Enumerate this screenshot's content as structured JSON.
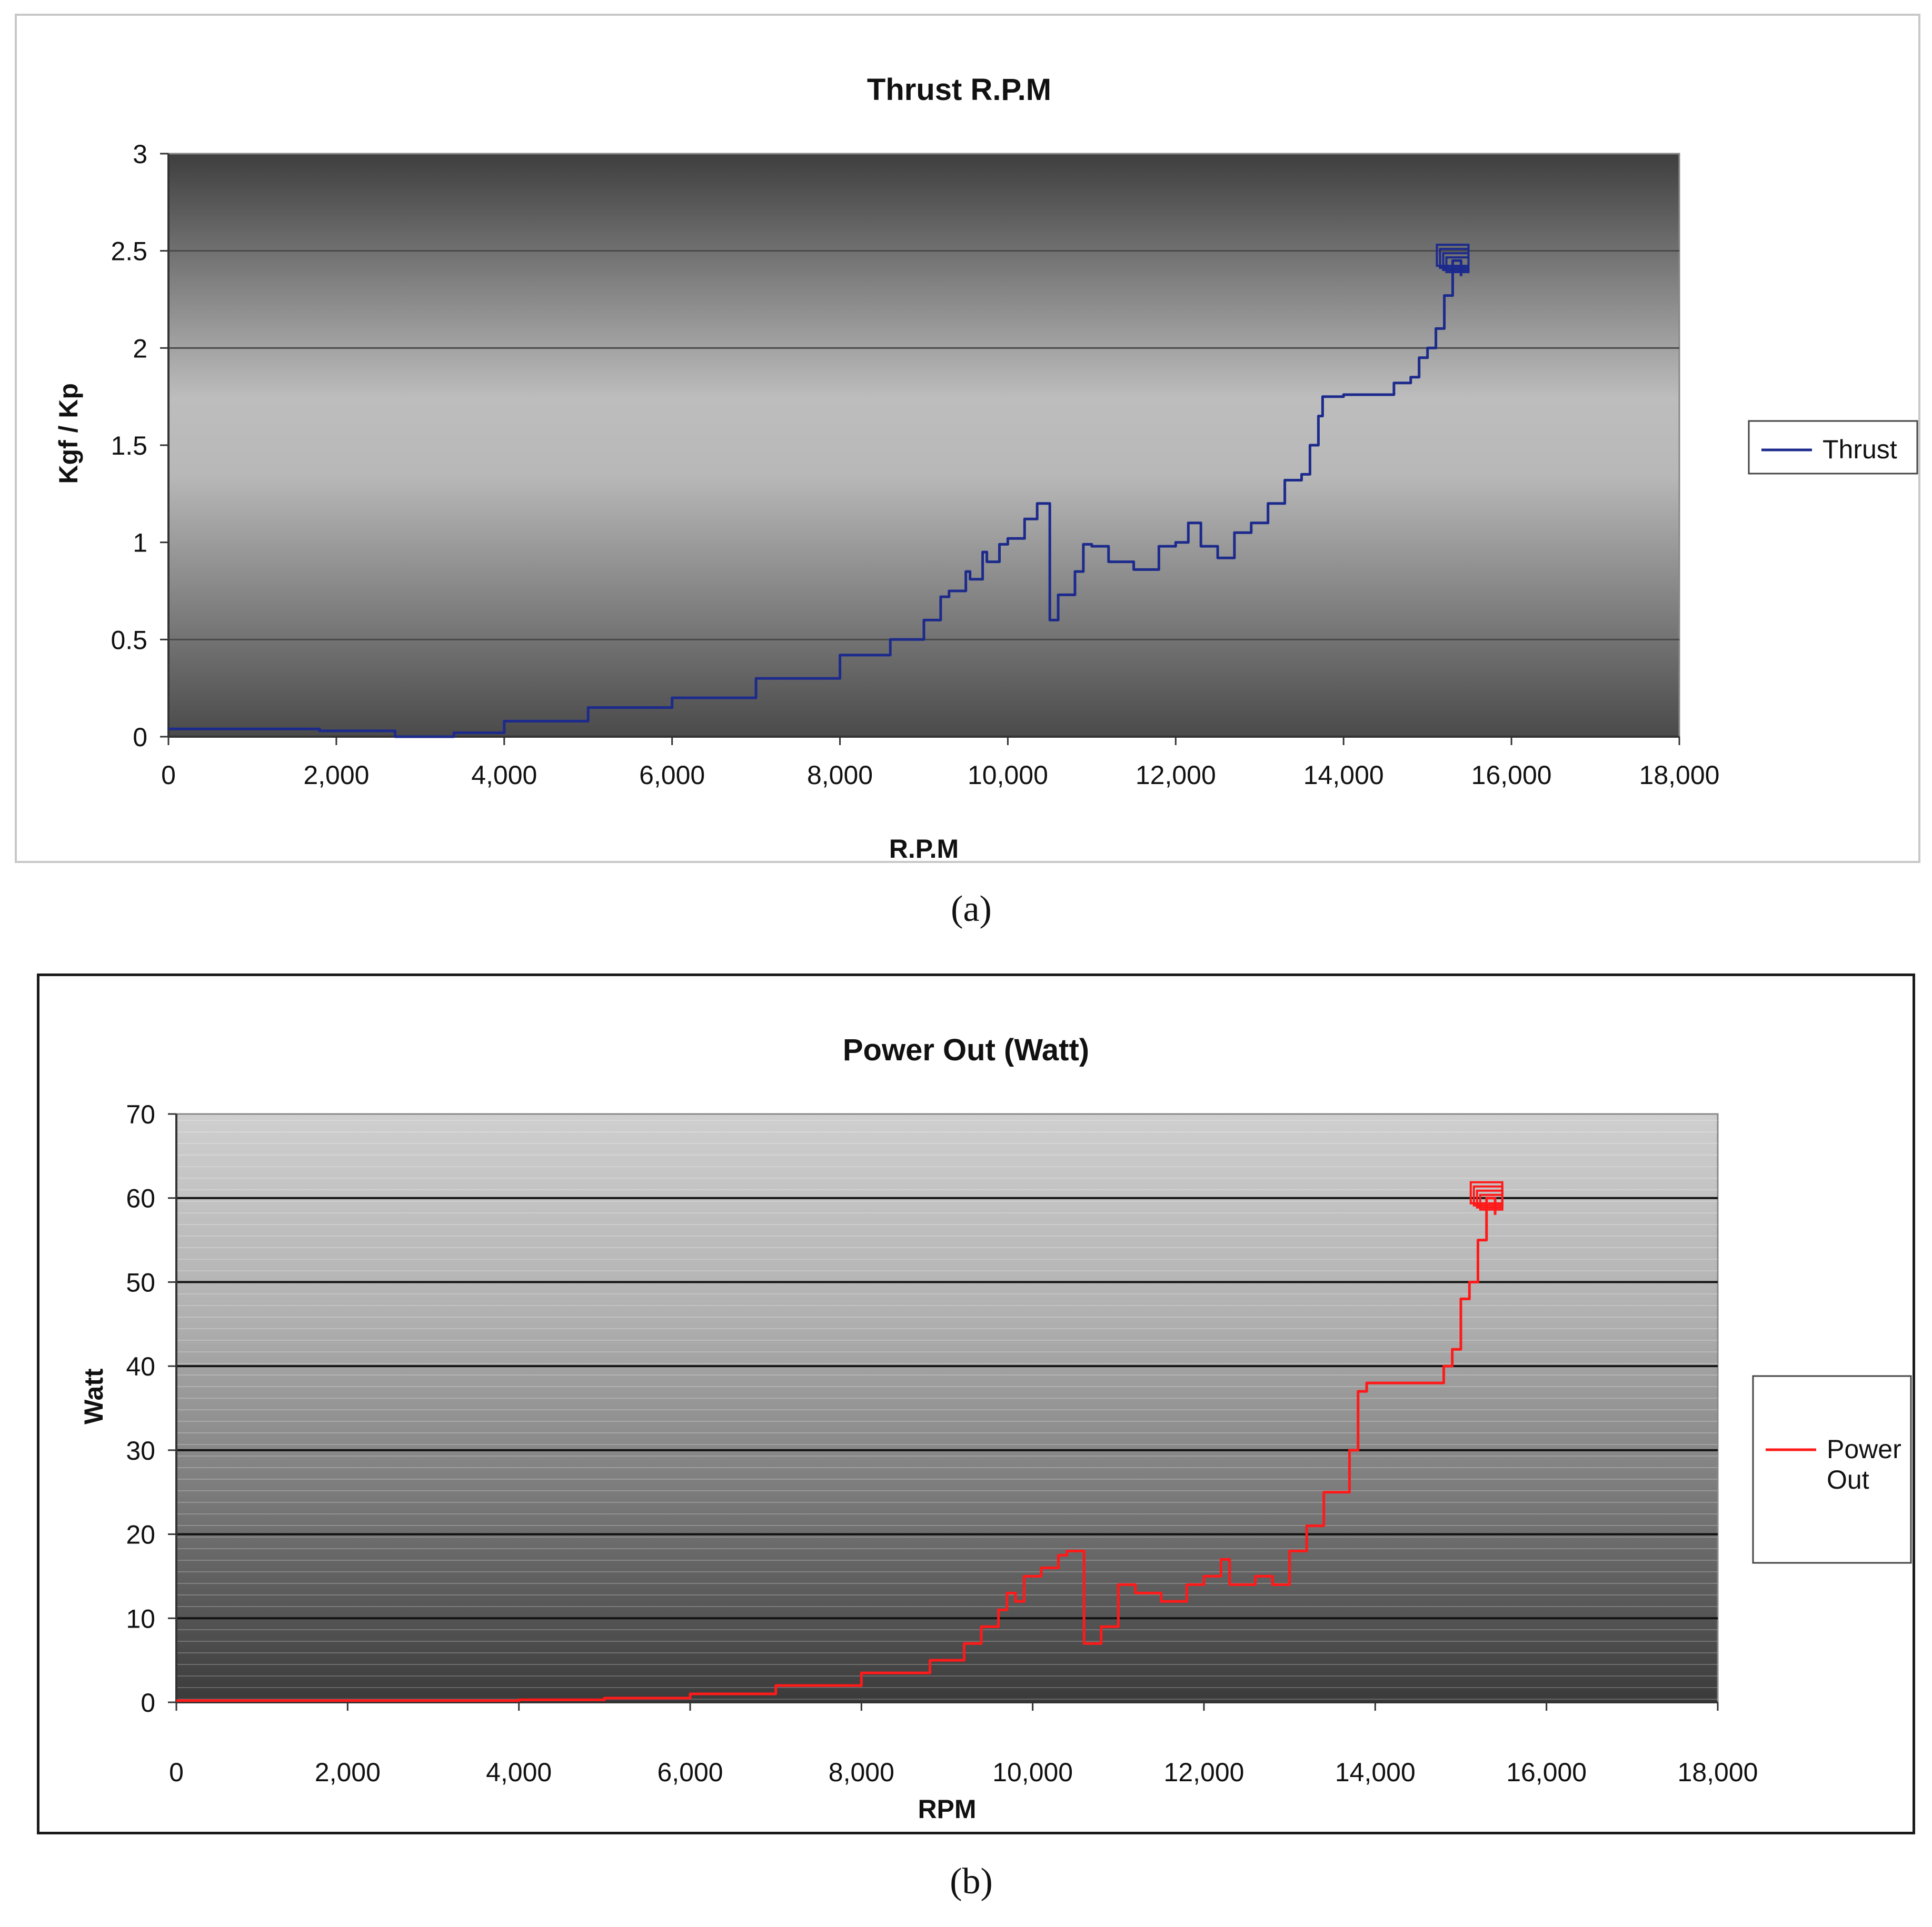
{
  "panel_labels": [
    "(a)",
    "(b)"
  ],
  "chart_data": [
    {
      "type": "line",
      "title": "Thrust R.P.M",
      "xlabel": "R.P.M",
      "ylabel": "Kgf / Kp",
      "xlim": [
        0,
        18000
      ],
      "ylim": [
        0,
        3
      ],
      "xticks": [
        0,
        2000,
        4000,
        6000,
        8000,
        10000,
        12000,
        14000,
        16000,
        18000
      ],
      "xtick_labels": [
        "0",
        "2,000",
        "4,000",
        "6,000",
        "8,000",
        "10,000",
        "12,000",
        "14,000",
        "16,000",
        "18,000"
      ],
      "yticks": [
        0,
        0.5,
        1,
        1.5,
        2,
        2.5,
        3
      ],
      "ytick_labels": [
        "0",
        "0.5",
        "1",
        "1.5",
        "2",
        "2.5",
        "3"
      ],
      "gridlines_y": [
        0.5,
        2,
        2.5
      ],
      "background": "dark-gray gradient",
      "legend_position": "right",
      "series": [
        {
          "name": "Thrust",
          "color": "#1c2a8c",
          "x": [
            0,
            1800,
            2700,
            2900,
            3400,
            4000,
            5000,
            6000,
            7000,
            8000,
            8600,
            9000,
            9200,
            9300,
            9500,
            9550,
            9700,
            9750,
            9900,
            10000,
            10200,
            10350,
            10500,
            10600,
            10800,
            10900,
            11000,
            11200,
            11500,
            11800,
            12000,
            12150,
            12300,
            12500,
            12700,
            12900,
            13100,
            13300,
            13500,
            13600,
            13700,
            13750,
            14000,
            14500,
            14600,
            14800,
            14900,
            15000,
            15100,
            15200,
            15300,
            15400
          ],
          "y": [
            0.04,
            0.03,
            0.0,
            0.0,
            0.02,
            0.08,
            0.15,
            0.2,
            0.3,
            0.42,
            0.5,
            0.6,
            0.72,
            0.75,
            0.85,
            0.81,
            0.95,
            0.9,
            0.99,
            1.02,
            1.12,
            1.2,
            0.6,
            0.73,
            0.85,
            0.99,
            0.98,
            0.9,
            0.86,
            0.98,
            1.0,
            1.1,
            0.98,
            0.92,
            1.05,
            1.1,
            1.2,
            1.32,
            1.35,
            1.5,
            1.65,
            1.75,
            1.76,
            1.76,
            1.82,
            1.85,
            1.95,
            2.0,
            2.1,
            2.27,
            2.45,
            2.37
          ]
        }
      ]
    },
    {
      "type": "line",
      "title": "Power Out (Watt)",
      "xlabel": "RPM",
      "ylabel": "Watt",
      "xlim": [
        0,
        18000
      ],
      "ylim": [
        0,
        70
      ],
      "xticks": [
        0,
        2000,
        4000,
        6000,
        8000,
        10000,
        12000,
        14000,
        16000,
        18000
      ],
      "xtick_labels": [
        "0",
        "2,000",
        "4,000",
        "6,000",
        "8,000",
        "10,000",
        "12,000",
        "14,000",
        "16,000",
        "18,000"
      ],
      "yticks": [
        0,
        10,
        20,
        30,
        40,
        50,
        60,
        70
      ],
      "ytick_labels": [
        "0",
        "10",
        "20",
        "30",
        "40",
        "50",
        "60",
        "70"
      ],
      "gridlines_y": [
        10,
        20,
        30,
        40,
        50,
        60
      ],
      "background": "gray gradient with fine horizontal lines",
      "legend_position": "right",
      "series": [
        {
          "name": "Power Out",
          "color": "#ff1a1a",
          "x": [
            0,
            2000,
            4000,
            5000,
            6000,
            7000,
            8000,
            8800,
            9200,
            9400,
            9600,
            9700,
            9800,
            9900,
            10100,
            10300,
            10400,
            10600,
            10800,
            11000,
            11200,
            11500,
            11800,
            12000,
            12200,
            12300,
            12600,
            12800,
            13000,
            13200,
            13400,
            13600,
            13700,
            13800,
            13900,
            14400,
            14600,
            14800,
            14900,
            15000,
            15100,
            15200,
            15300,
            15400
          ],
          "y": [
            0.2,
            0.2,
            0.3,
            0.5,
            1.0,
            2.0,
            3.5,
            5.0,
            7.0,
            9.0,
            11.0,
            13.0,
            12.0,
            15.0,
            16.0,
            17.5,
            18.0,
            7.0,
            9.0,
            14.0,
            13.0,
            12.0,
            14.0,
            15.0,
            17.0,
            14.0,
            15.0,
            14.0,
            18.0,
            21.0,
            25.0,
            25.0,
            30.0,
            37.0,
            38.0,
            38.0,
            38.0,
            40.0,
            42.0,
            48.0,
            50.0,
            55.0,
            60.0,
            58.0
          ]
        }
      ]
    }
  ]
}
